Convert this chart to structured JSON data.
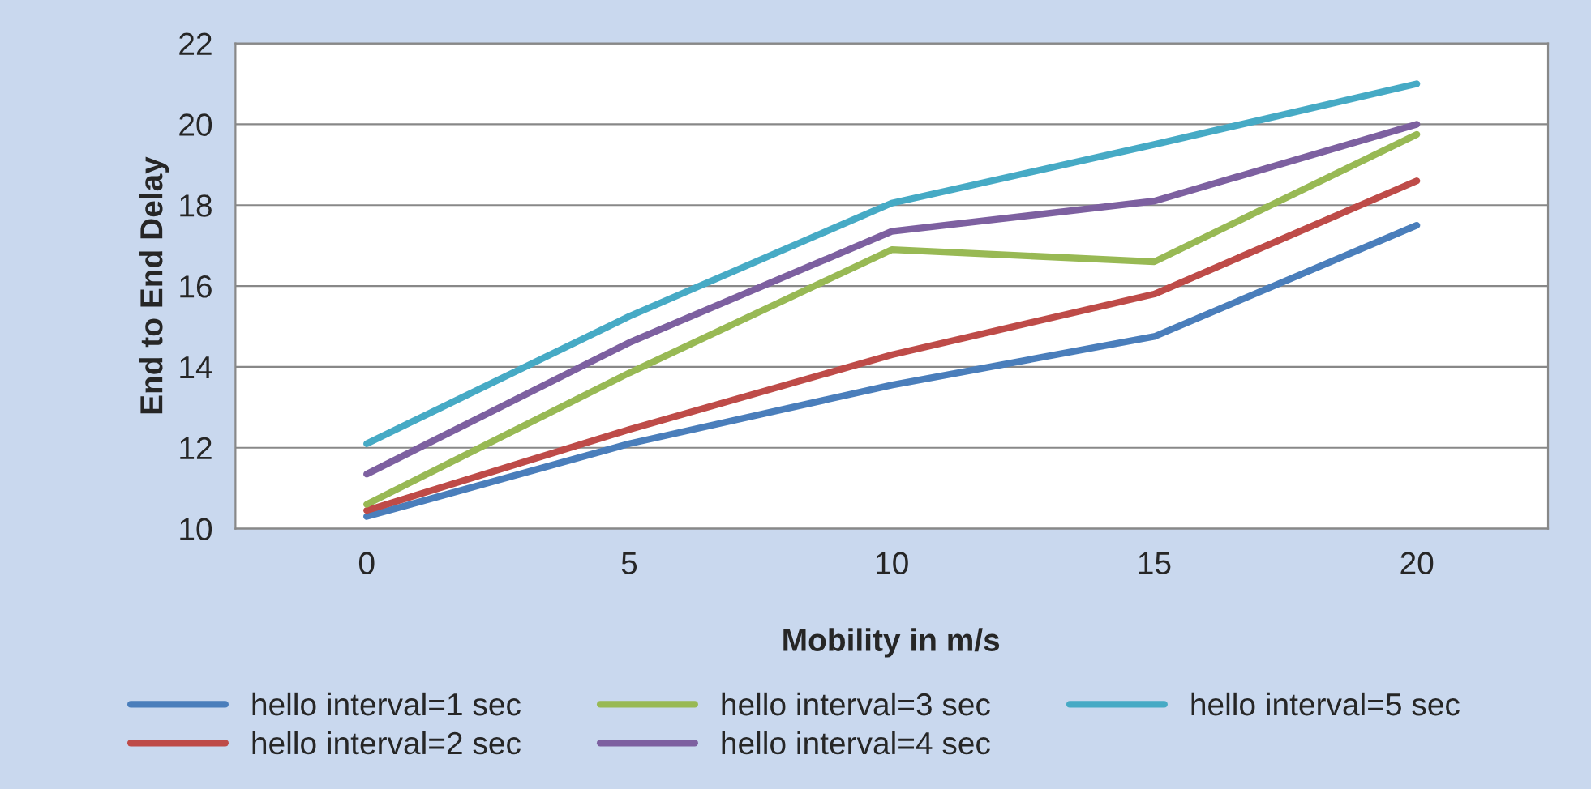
{
  "chart_data": {
    "type": "line",
    "xlabel": "Mobility in m/s",
    "ylabel": "End to End Delay",
    "categories": [
      "0",
      "5",
      "10",
      "15",
      "20"
    ],
    "series": [
      {
        "name": "hello interval=1 sec",
        "color": "#4a7ebb",
        "values": [
          10.3,
          12.1,
          13.55,
          14.75,
          17.5
        ]
      },
      {
        "name": "hello interval=2 sec",
        "color": "#be4b48",
        "values": [
          10.45,
          12.45,
          14.3,
          15.8,
          18.6
        ]
      },
      {
        "name": "hello interval=3 sec",
        "color": "#98b954",
        "values": [
          10.6,
          13.85,
          16.9,
          16.6,
          19.75
        ]
      },
      {
        "name": "hello interval=4 sec",
        "color": "#7d60a0",
        "values": [
          11.35,
          14.6,
          17.35,
          18.1,
          20.0
        ]
      },
      {
        "name": "hello interval=5 sec",
        "color": "#46aac5",
        "values": [
          12.1,
          15.25,
          18.05,
          19.5,
          21.0
        ]
      }
    ],
    "ylim": [
      10,
      22
    ],
    "yticks": [
      10,
      12,
      14,
      16,
      18,
      20,
      22
    ],
    "grid": "y",
    "legend": "bottom",
    "marker": "none",
    "line_style": "solid"
  }
}
